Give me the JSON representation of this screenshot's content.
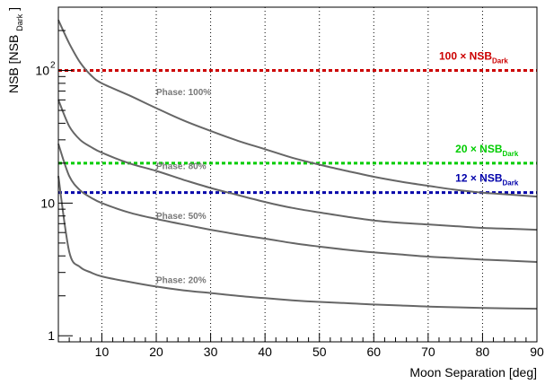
{
  "chart_data": {
    "type": "line",
    "xlabel": "Moon Separation [deg]",
    "ylabel": {
      "main": "NSB [NSB",
      "sub": "Dark",
      "close": "]"
    },
    "xlim": [
      2,
      90
    ],
    "ylim": [
      0.9,
      300
    ],
    "y_scale": "log",
    "grid": "vertical dotted",
    "x_ticks": [
      {
        "value": 10,
        "label": "10"
      },
      {
        "value": 20,
        "label": "20"
      },
      {
        "value": 30,
        "label": "30"
      },
      {
        "value": 40,
        "label": "40"
      },
      {
        "value": 50,
        "label": "50"
      },
      {
        "value": 60,
        "label": "60"
      },
      {
        "value": 70,
        "label": "70"
      },
      {
        "value": 80,
        "label": "80"
      },
      {
        "value": 90,
        "label": "90"
      }
    ],
    "y_ticks": [
      {
        "value": 1,
        "label": "1",
        "sup": ""
      },
      {
        "value": 10,
        "label": "10",
        "sup": ""
      },
      {
        "value": 100,
        "label": "10",
        "sup": "2"
      }
    ],
    "series": [
      {
        "name": "Phase: 100%",
        "color": "#666666",
        "x": [
          2,
          4,
          6,
          8,
          10,
          15,
          20,
          25,
          30,
          35,
          40,
          45,
          50,
          55,
          60,
          65,
          70,
          75,
          80,
          85,
          90
        ],
        "y": [
          240,
          160,
          115,
          92,
          80,
          65,
          52,
          42,
          35,
          29.5,
          25.5,
          22,
          19.5,
          17.5,
          15.8,
          14.5,
          13.5,
          12.6,
          12,
          11.6,
          11.2
        ]
      },
      {
        "name": "Phase: 80%",
        "color": "#666666",
        "x": [
          2,
          4,
          6,
          8,
          10,
          15,
          20,
          25,
          30,
          35,
          40,
          45,
          50,
          55,
          60,
          65,
          70,
          75,
          80,
          85,
          90
        ],
        "y": [
          60,
          38,
          30,
          26.5,
          24,
          20,
          17.5,
          15,
          13,
          11.5,
          10.2,
          9.2,
          8.5,
          7.9,
          7.4,
          7.1,
          6.9,
          6.7,
          6.5,
          6.4,
          6.3
        ]
      },
      {
        "name": "Phase: 50%",
        "color": "#666666",
        "x": [
          2,
          4,
          6,
          8,
          10,
          15,
          20,
          25,
          30,
          35,
          40,
          45,
          50,
          55,
          60,
          65,
          70,
          75,
          80,
          85,
          90
        ],
        "y": [
          28,
          16,
          12.5,
          11,
          10,
          8.5,
          7.6,
          6.9,
          6.3,
          5.8,
          5.4,
          5.0,
          4.7,
          4.45,
          4.25,
          4.1,
          3.95,
          3.85,
          3.75,
          3.68,
          3.6
        ]
      },
      {
        "name": "Phase: 20%",
        "color": "#666666",
        "x": [
          2,
          4,
          6,
          8,
          10,
          15,
          20,
          25,
          30,
          35,
          40,
          45,
          50,
          55,
          60,
          65,
          70,
          75,
          80,
          85,
          90
        ],
        "y": [
          16,
          4.3,
          3.3,
          3.0,
          2.8,
          2.55,
          2.35,
          2.2,
          2.1,
          2.0,
          1.92,
          1.85,
          1.8,
          1.76,
          1.72,
          1.69,
          1.66,
          1.64,
          1.62,
          1.61,
          1.6
        ]
      }
    ],
    "curve_labels": [
      {
        "text": "Phase: 100%",
        "x": 20,
        "y": 65
      },
      {
        "text": "Phase: 80%",
        "x": 20,
        "y": 18
      },
      {
        "text": "Phase: 50%",
        "x": 20,
        "y": 7.6
      },
      {
        "text": "Phase: 20%",
        "x": 20,
        "y": 2.5
      }
    ],
    "reference_lines": [
      {
        "name": "100 × NSB Dark",
        "value": 100,
        "color": "#cc0000",
        "label": "100 × NSB",
        "sub": "Dark",
        "label_x": 72
      },
      {
        "name": "20 × NSB Dark",
        "value": 20,
        "color": "#00cc00",
        "label": "20 × NSB",
        "sub": "Dark",
        "label_x": 75
      },
      {
        "name": "12 × NSB Dark",
        "value": 12,
        "color": "#0000aa",
        "label": "12 × NSB",
        "sub": "Dark",
        "label_x": 75
      }
    ]
  }
}
